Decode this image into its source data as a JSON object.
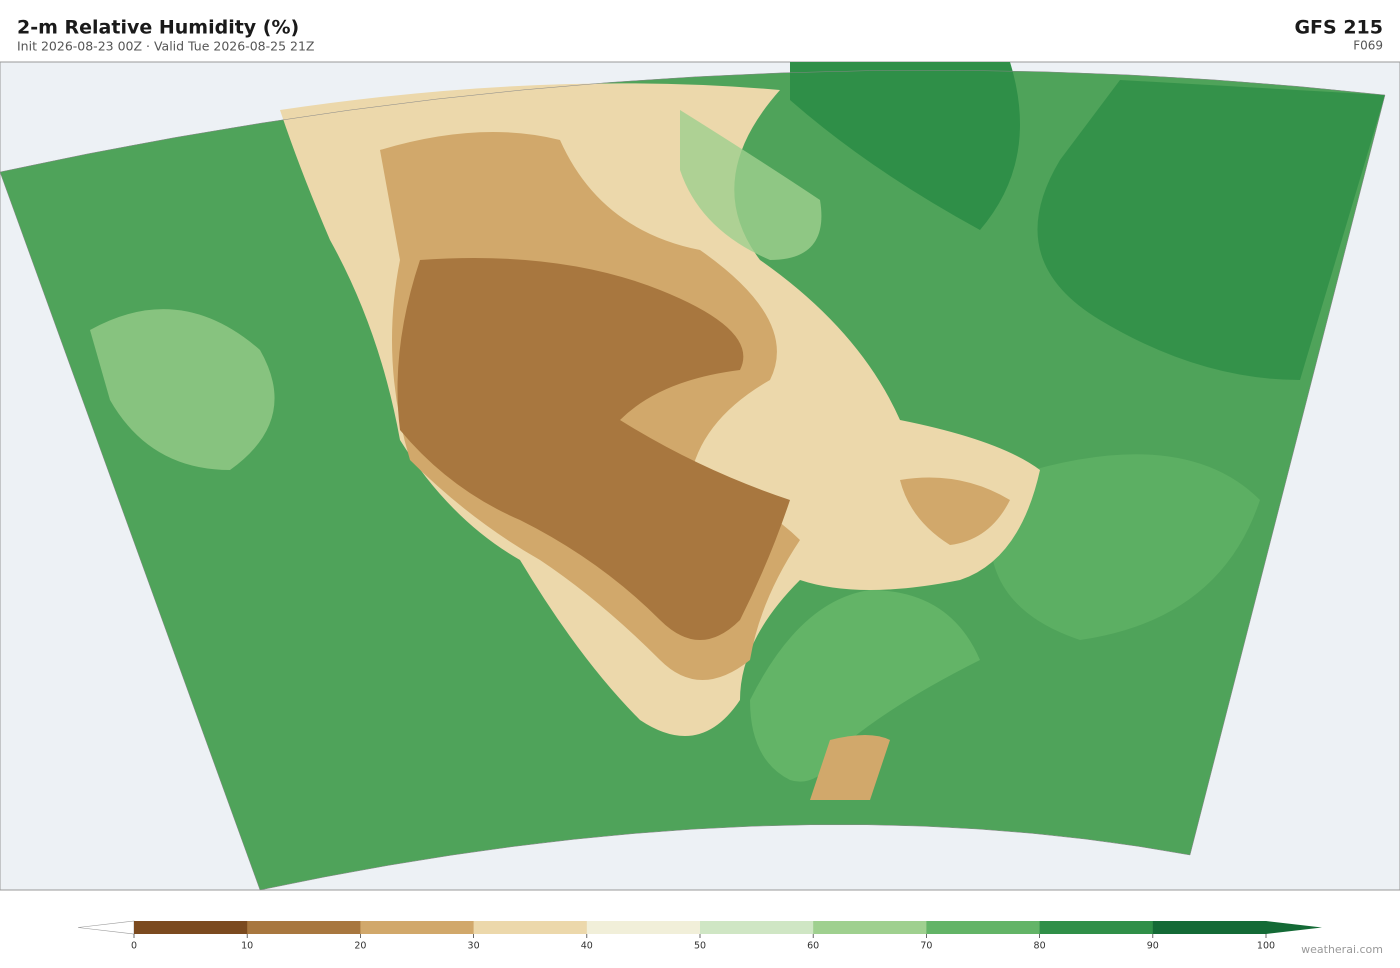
{
  "header": {
    "title": "2-m Relative Humidity  (%)",
    "subtitle": "Init 2026-08-23 00Z  ·  Valid Tue 2026-08-25 21Z",
    "model": "GFS  215",
    "forecast_hour": "F069"
  },
  "colorbar": {
    "ticks": [
      0,
      10,
      20,
      30,
      40,
      50,
      60,
      70,
      80,
      90,
      100
    ],
    "colors": [
      "#7b4a1f",
      "#a8773f",
      "#d1a86b",
      "#ecd8ab",
      "#f1efd9",
      "#cfe6c4",
      "#9fd08f",
      "#63b467",
      "#2f8f48",
      "#146a36"
    ],
    "under_color": "#ffffff",
    "over_color": "#146a36"
  },
  "footer": {
    "credit": "weatherai.com"
  }
}
